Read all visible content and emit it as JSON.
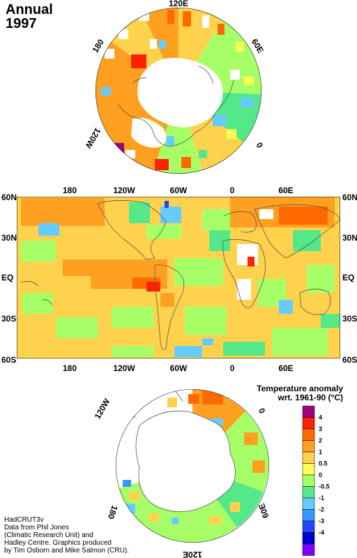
{
  "title": {
    "period": "Annual",
    "year": "1997"
  },
  "north_polar_map": {
    "labels": {
      "top": "120E",
      "left": "180",
      "right": "60E",
      "lower_left": "120W",
      "lower_right": "0"
    }
  },
  "world_map": {
    "top_lon_labels": [
      "180",
      "120W",
      "60W",
      "0",
      "60E"
    ],
    "bottom_lon_labels": [
      "180",
      "120W",
      "60W",
      "0",
      "60E"
    ],
    "left_lat_labels": [
      "60N",
      "30N",
      "EQ",
      "30S",
      "60S"
    ],
    "right_lat_labels": [
      "60N",
      "30N",
      "EQ",
      "30S",
      "60S"
    ]
  },
  "south_polar_map": {
    "labels": {
      "upper_left": "120W",
      "upper_right": "0",
      "lower_left": "180",
      "lower_right": "60E",
      "bottom": "120E"
    }
  },
  "legend": {
    "title_line1": "Temperature anomaly",
    "title_line2": "wrt. 1961-90  (°C)",
    "labels": [
      "4",
      "3",
      "2",
      "1",
      "0.5",
      "0",
      "-0.5",
      "-1",
      "-2",
      "-3",
      "-4"
    ],
    "colors": [
      "#a0007f",
      "#ff2200",
      "#ff6a00",
      "#ffa020",
      "#ffd24d",
      "#ffff55",
      "#a6ff66",
      "#55e888",
      "#66ccff",
      "#3399ff",
      "#2244ff",
      "#0000d0",
      "#8000ff"
    ]
  },
  "credits": {
    "line1": "HadCRUT3v",
    "line2": "Data from Phil Jones",
    "line3": "(Climatic Research Unit) and",
    "line4": "Hadley Centre.  Graphics produced",
    "line5": "by Tim Osborn and Mike Salmon (CRU)."
  }
}
